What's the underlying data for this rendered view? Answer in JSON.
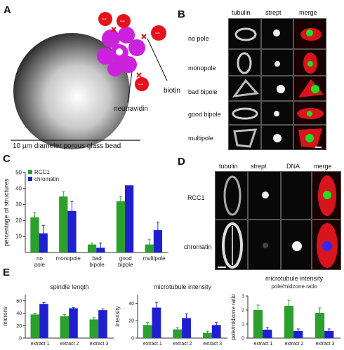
{
  "panels": {
    "a": {
      "letter": "A",
      "scale_text": "10 µm diameter porous glass bead",
      "label_biotin": "biotin",
      "label_neutravidin": "neutravidin",
      "red_token": "biotin"
    },
    "b": {
      "letter": "B",
      "headers": [
        "tubulin",
        "strept",
        "merge"
      ],
      "rows": [
        "no pole",
        "monopole",
        "bad bipole",
        "good bipole",
        "multipole"
      ]
    },
    "c": {
      "letter": "C"
    },
    "d": {
      "letter": "D",
      "headers": [
        "tubulin",
        "strept",
        "DNA",
        "merge"
      ],
      "rows": [
        "RCC1",
        "chromatin"
      ]
    },
    "e": {
      "letter": "E"
    }
  },
  "colors": {
    "rcc1": "#2ca02c",
    "chromatin": "#1f1fd0",
    "bead_red": "#e5121b",
    "neutravidin": "#cc22dd"
  },
  "chart_data": [
    {
      "type": "bar",
      "categories": [
        "no pole",
        "monopole",
        "bad bipole",
        "good bipole",
        "multipole"
      ],
      "series": [
        {
          "name": "RCC1",
          "values": [
            22,
            35,
            5,
            32,
            5
          ],
          "errors": [
            3,
            3,
            1,
            3,
            3
          ]
        },
        {
          "name": "chromatin",
          "values": [
            12,
            26,
            3,
            42,
            14
          ],
          "errors": [
            5,
            6,
            3,
            0,
            5
          ]
        }
      ],
      "ylabel": "percentage of structures",
      "ylim": [
        0,
        50
      ],
      "yticks": [
        10,
        20,
        30,
        40,
        50
      ],
      "legend": "top-left"
    },
    {
      "type": "bar",
      "title": "spindle length",
      "categories": [
        "extract 1",
        "extract 2",
        "extract 3"
      ],
      "series": [
        {
          "name": "RCC1",
          "values": [
            38,
            35,
            30
          ],
          "errors": [
            2,
            3,
            3
          ]
        },
        {
          "name": "chromatin",
          "values": [
            55,
            48,
            45
          ],
          "errors": [
            2,
            1,
            2
          ]
        }
      ],
      "ylabel": "microns",
      "ylim": [
        0,
        70
      ],
      "yticks": [
        0,
        20,
        40,
        60
      ]
    },
    {
      "type": "bar",
      "title": "microtubule intensity",
      "categories": [
        "extract 1",
        "extract 2",
        "extract 3"
      ],
      "series": [
        {
          "name": "RCC1",
          "values": [
            15,
            10,
            6
          ],
          "errors": [
            3,
            2,
            2
          ]
        },
        {
          "name": "chromatin",
          "values": [
            35,
            23,
            15
          ],
          "errors": [
            6,
            5,
            3
          ]
        }
      ],
      "ylabel": "intensity",
      "ylim": [
        0,
        50
      ],
      "yticks": [
        0,
        20,
        40
      ]
    },
    {
      "type": "bar",
      "title": "microtubule intensity",
      "subtitle": "pole/midzone ratio",
      "categories": [
        "extract 1",
        "extract 2",
        "extract 3"
      ],
      "series": [
        {
          "name": "RCC1",
          "values": [
            2.0,
            2.3,
            1.8
          ],
          "errors": [
            0.35,
            0.4,
            0.35
          ]
        },
        {
          "name": "chromatin",
          "values": [
            0.6,
            0.5,
            0.5
          ],
          "errors": [
            0.15,
            0.15,
            0.15
          ]
        }
      ],
      "ylabel": "pole/midzone ratio",
      "ylim": [
        0,
        3
      ],
      "yticks": [
        0,
        1,
        2,
        3
      ]
    }
  ]
}
